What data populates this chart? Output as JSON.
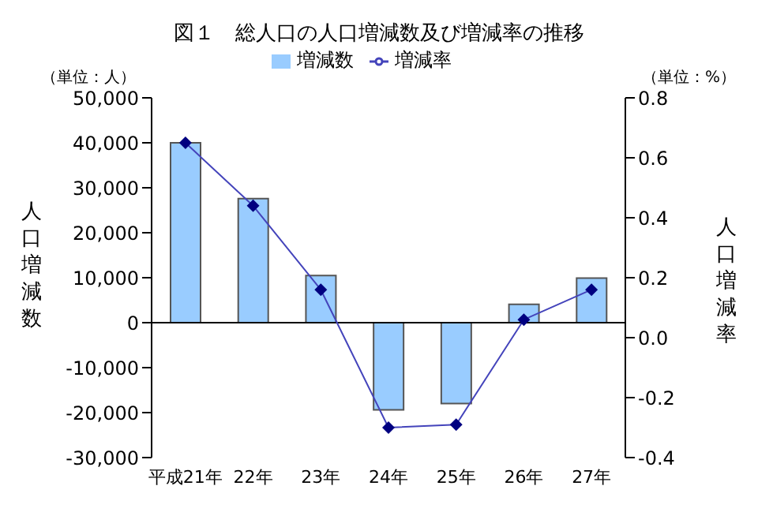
{
  "chart_data": {
    "type": "bar",
    "title": "図１　総人口の人口増減数及び増減率の推移",
    "ylabel": "人口増減数",
    "y2label": "人口増減率",
    "annotations": [
      "（単位：人）",
      "（単位：%）"
    ],
    "categories": [
      "平成21年",
      "22年",
      "23年",
      "24年",
      "25年",
      "26年",
      "27年"
    ],
    "series": [
      {
        "name": "増減数",
        "color": "#99ccff",
        "values": [
          40000,
          27600,
          10500,
          -19400,
          -18000,
          4100,
          9900
        ]
      },
      {
        "name": "増減率",
        "type": "line",
        "axis": "y2",
        "color": "#000080",
        "values": [
          0.65,
          0.44,
          0.16,
          -0.3,
          -0.29,
          0.06,
          0.16
        ]
      }
    ],
    "ylim": [
      -30000,
      50000
    ],
    "yticks": [
      {
        "value": -30000,
        "label": "-30,000"
      },
      {
        "value": -20000,
        "label": "-20,000"
      },
      {
        "value": -10000,
        "label": "-10,000"
      },
      0,
      {
        "value": 10000,
        "label": "10,000"
      },
      {
        "value": 20000,
        "label": "20,000"
      },
      {
        "value": 30000,
        "label": "30,000"
      },
      {
        "value": 40000,
        "label": "40,000"
      },
      {
        "value": 50000,
        "label": "50,000"
      }
    ],
    "y2lim": [
      -0.4,
      0.8
    ],
    "y2ticks": [
      {
        "value": -0.4,
        "label": "-0.4"
      },
      {
        "value": -0.2,
        "label": "-0.2"
      },
      {
        "value": 0,
        "label": "0.0"
      },
      0.2,
      0.4,
      0.6,
      0.8
    ],
    "legend": "top",
    "marker": "diamond"
  }
}
